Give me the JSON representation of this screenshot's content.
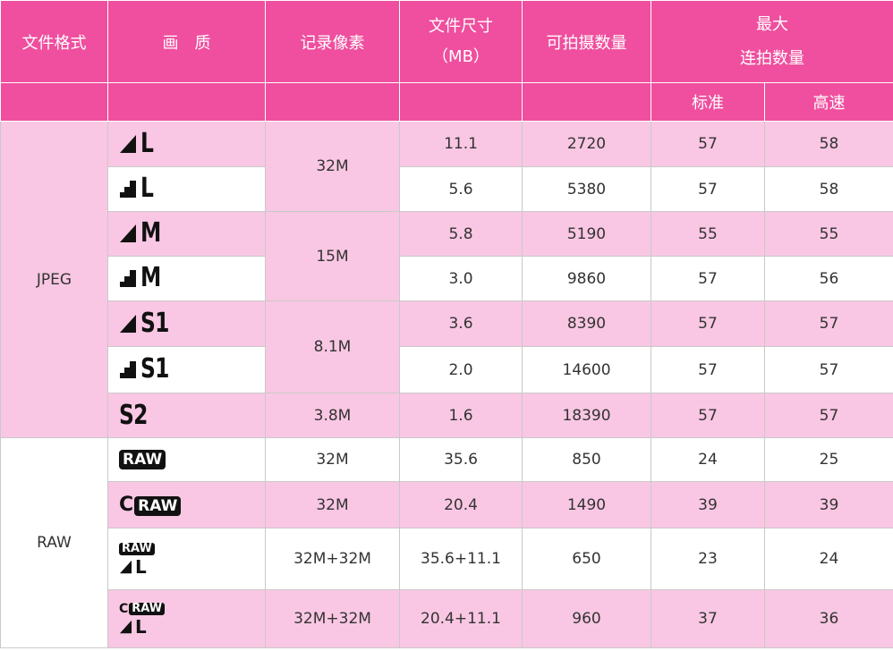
{
  "header": {
    "format": "文件格式",
    "quality": "画　质",
    "pixels": "记录像素",
    "filesize": "文件尺寸",
    "filesize_unit": "（MB）",
    "shots": "可拍摄数量",
    "burst_l1": "最大",
    "burst_l2": "连拍数量",
    "standard": "标准",
    "highspeed": "高速"
  },
  "groups": {
    "jpeg": "JPEG",
    "raw": "RAW"
  },
  "quality_symbols": {
    "fine_l": "L",
    "normal_l": "L",
    "fine_m": "M",
    "normal_m": "M",
    "fine_s1": "S1",
    "normal_s1": "S1",
    "s2": "S2",
    "raw": "RAW",
    "craw_c": "C",
    "craw": "RAW",
    "raw_l_badge": "RAW",
    "raw_l_text": "L",
    "craw_l_c": "C",
    "craw_l_badge": "RAW",
    "craw_l_text": "L"
  },
  "rows": [
    {
      "pixels": "32M",
      "size": "11.1",
      "shots": "2720",
      "std": "57",
      "hs": "58"
    },
    {
      "size": "5.6",
      "shots": "5380",
      "std": "57",
      "hs": "58"
    },
    {
      "pixels": "15M",
      "size": "5.8",
      "shots": "5190",
      "std": "55",
      "hs": "55"
    },
    {
      "size": "3.0",
      "shots": "9860",
      "std": "57",
      "hs": "56"
    },
    {
      "pixels": "8.1M",
      "size": "3.6",
      "shots": "8390",
      "std": "57",
      "hs": "57"
    },
    {
      "size": "2.0",
      "shots": "14600",
      "std": "57",
      "hs": "57"
    },
    {
      "pixels": "3.8M",
      "size": "1.6",
      "shots": "18390",
      "std": "57",
      "hs": "57"
    },
    {
      "pixels": "32M",
      "size": "35.6",
      "shots": "850",
      "std": "24",
      "hs": "25"
    },
    {
      "pixels": "32M",
      "size": "20.4",
      "shots": "1490",
      "std": "39",
      "hs": "39"
    },
    {
      "pixels": "32M+32M",
      "size": "35.6+11.1",
      "shots": "650",
      "std": "23",
      "hs": "24"
    },
    {
      "pixels": "32M+32M",
      "size": "20.4+11.1",
      "shots": "960",
      "std": "37",
      "hs": "36"
    }
  ],
  "colors": {
    "header_pink": "#ef4f9e",
    "row_pink": "#f9c7e3",
    "row_white": "#ffffff"
  }
}
